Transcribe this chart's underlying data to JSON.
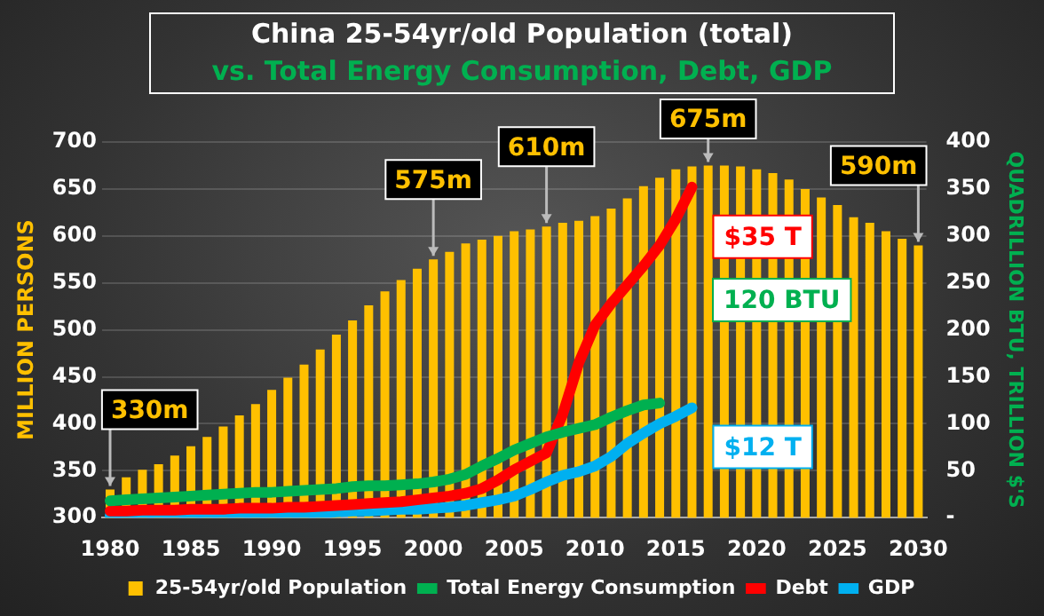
{
  "chart_data": {
    "type": "bar",
    "title": "China 25-54yr/old Population (total)",
    "subtitle": "vs. Total Energy Consumption, Debt, GDP",
    "ylabel": "MILLION PERSONS",
    "y2label": "QUADRILLION BTU, TRILLION $'S",
    "categories": [
      "1980",
      null,
      null,
      null,
      null,
      "1985",
      null,
      null,
      null,
      null,
      "1990",
      null,
      null,
      null,
      null,
      "1995",
      null,
      null,
      null,
      null,
      "2000",
      null,
      null,
      null,
      null,
      "2005",
      null,
      null,
      null,
      null,
      "2010",
      null,
      null,
      null,
      null,
      "2015",
      null,
      null,
      null,
      null,
      "2020",
      null,
      null,
      null,
      null,
      "2025",
      null,
      null,
      null,
      null,
      "2030"
    ],
    "series": [
      {
        "name": "25-54yr/old Population",
        "color": "#ffc000",
        "values": [
          330,
          343,
          351,
          357,
          366,
          376,
          386,
          397,
          409,
          421,
          436,
          449,
          463,
          479,
          495,
          510,
          526,
          541,
          553,
          565,
          575,
          583,
          592,
          596,
          600,
          605,
          607,
          610,
          614,
          616,
          621,
          629,
          640,
          653,
          662,
          671,
          674,
          675,
          675,
          674,
          671,
          667,
          660,
          650,
          641,
          633,
          620,
          614,
          605,
          597,
          590
        ],
        "value_labels": [
          "330m",
          null,
          null,
          null,
          null,
          null,
          null,
          null,
          null,
          null,
          null,
          null,
          null,
          null,
          null,
          null,
          null,
          null,
          null,
          null,
          "575m",
          null,
          null,
          null,
          null,
          null,
          null,
          "610m",
          null,
          null,
          null,
          null,
          null,
          null,
          null,
          null,
          null,
          "675m",
          null,
          null,
          null,
          null,
          null,
          null,
          null,
          null,
          null,
          null,
          null,
          null,
          "590m"
        ]
      },
      {
        "name": "Total Energy Consumption",
        "type": "line",
        "axis": "y2",
        "color": "#00b050",
        "values": [
          18,
          19,
          20,
          21,
          22,
          23,
          24,
          25,
          26,
          27,
          27,
          28,
          29,
          30,
          31,
          33,
          34,
          34,
          35,
          36,
          38,
          41,
          46,
          55,
          63,
          72,
          79,
          86,
          91,
          95,
          99,
          107,
          114,
          120,
          122,
          null,
          null,
          null,
          null,
          null,
          null,
          null,
          null,
          null,
          null,
          null,
          null,
          null,
          null,
          null,
          null
        ]
      },
      {
        "name": "Debt",
        "type": "line",
        "axis": "y2",
        "color": "#ff0000",
        "values": [
          7,
          7,
          8,
          8,
          8,
          9,
          9,
          9,
          10,
          10,
          10,
          11,
          11,
          12,
          13,
          14,
          15,
          16,
          17,
          19,
          21,
          23,
          26,
          31,
          40,
          51,
          60,
          69,
          110,
          165,
          205,
          228,
          248,
          268,
          290,
          318,
          352,
          null,
          null,
          null,
          null,
          null,
          null,
          null,
          null,
          null,
          null,
          null,
          null,
          null,
          null
        ]
      },
      {
        "name": "GDP",
        "type": "line",
        "axis": "y2",
        "color": "#00b0f0",
        "values": [
          2,
          2,
          2,
          2,
          3,
          3,
          3,
          3,
          4,
          4,
          4,
          4,
          5,
          5,
          6,
          7,
          7,
          8,
          9,
          9,
          10,
          11,
          13,
          16,
          19,
          23,
          30,
          38,
          45,
          49,
          55,
          65,
          79,
          90,
          100,
          108,
          117,
          null,
          null,
          null,
          null,
          null,
          null,
          null,
          null,
          null,
          null,
          null,
          null,
          null,
          null
        ]
      }
    ],
    "ylim": [
      300,
      700
    ],
    "yticks": [
      300,
      350,
      400,
      450,
      500,
      550,
      600,
      650,
      700
    ],
    "y2lim": [
      0,
      400
    ],
    "y2ticks": [
      {
        "value": 0,
        "label": "-"
      },
      50,
      100,
      150,
      200,
      250,
      300,
      350,
      400
    ],
    "annotations": [
      "$35 T",
      "120 BTU",
      "$12 T"
    ],
    "grid": "y",
    "legend": "bottom",
    "marker": "none"
  }
}
